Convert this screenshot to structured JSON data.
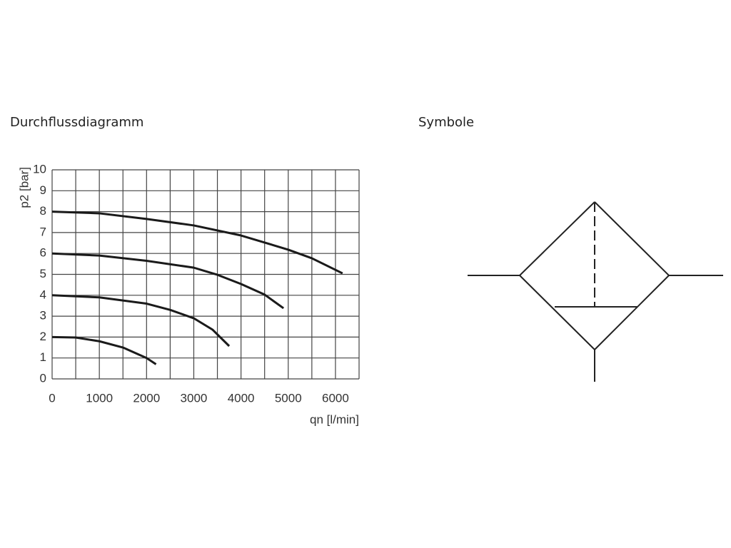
{
  "symbol_title": "Symbole",
  "chart_data": {
    "type": "line",
    "title": "Durchflussdiagramm",
    "x_label": "qn [l/min]",
    "y_label": "p2 [bar]",
    "xlim": [
      0,
      6500
    ],
    "ylim": [
      0,
      10
    ],
    "xticks": [
      0,
      1000,
      2000,
      3000,
      4000,
      5000,
      6000
    ],
    "yticks": [
      0,
      1,
      2,
      3,
      4,
      5,
      6,
      7,
      8,
      9,
      10
    ],
    "xgrid": [
      0,
      500,
      1000,
      1500,
      2000,
      2500,
      3000,
      3500,
      4000,
      4500,
      5000,
      5500,
      6000,
      6500
    ],
    "grid": true,
    "series": [
      {
        "color": "#1a1a1a",
        "x": [
          0,
          1000,
          2000,
          3000,
          4000,
          5000,
          5500,
          6150
        ],
        "values": [
          8.0,
          7.92,
          7.65,
          7.34,
          6.86,
          6.18,
          5.77,
          5.05
        ]
      },
      {
        "color": "#1a1a1a",
        "x": [
          0,
          1000,
          2000,
          3000,
          3500,
          4000,
          4500,
          4900
        ],
        "values": [
          6.0,
          5.9,
          5.65,
          5.32,
          4.98,
          4.54,
          4.03,
          3.38
        ]
      },
      {
        "color": "#1a1a1a",
        "x": [
          0,
          1000,
          2000,
          2500,
          3000,
          3400,
          3750
        ],
        "values": [
          4.0,
          3.9,
          3.6,
          3.3,
          2.9,
          2.35,
          1.57
        ]
      },
      {
        "color": "#1a1a1a",
        "x": [
          0,
          500,
          1000,
          1500,
          2000,
          2200
        ],
        "values": [
          2.0,
          1.98,
          1.8,
          1.5,
          1.0,
          0.7
        ]
      }
    ]
  }
}
